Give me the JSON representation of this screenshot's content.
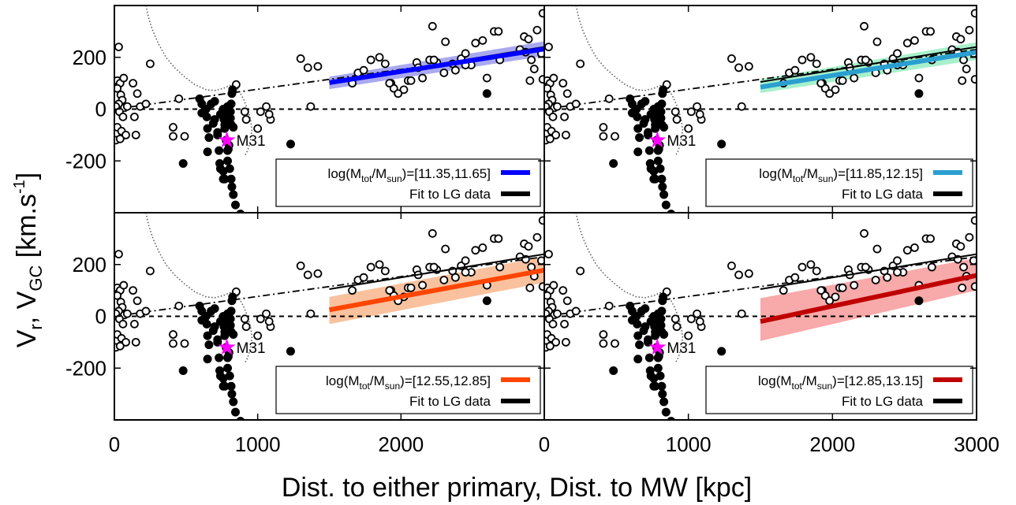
{
  "figure": {
    "ylabel_main": "V",
    "ylabel_sub1": "r",
    "ylabel_mid": ",  V",
    "ylabel_sub2": "GC",
    "ylabel_units": " [km.s",
    "ylabel_sup": "-1",
    "ylabel_close": "]",
    "xlabel": "Dist. to either primary, Dist. to MW  [kpc]",
    "mw_label": "M31"
  },
  "chart_data": [
    {
      "type": "scatter",
      "panel": "top-left",
      "legend_range": "=[11.35,11.65]",
      "band_color": "#a9a9f0",
      "line_color": "#0000ff",
      "band_low": [
        [
          1500,
          77
        ],
        [
          3000,
          205
        ]
      ],
      "band_high": [
        [
          1500,
          125
        ],
        [
          3000,
          262
        ]
      ],
      "fit_line": [
        [
          1500,
          102
        ],
        [
          3000,
          232
        ]
      ]
    },
    {
      "type": "scatter",
      "panel": "top-right",
      "legend_range": "=[11.85,12.15]",
      "band_color": "#a8f0cc",
      "line_color": "#2a9fd0",
      "band_low": [
        [
          1500,
          62
        ],
        [
          3000,
          190
        ]
      ],
      "band_high": [
        [
          1500,
          115
        ],
        [
          3000,
          258
        ]
      ],
      "fit_line": [
        [
          1500,
          85
        ],
        [
          3000,
          220
        ]
      ]
    },
    {
      "type": "scatter",
      "panel": "bottom-left",
      "legend_range": "=[12.55,12.85]",
      "band_color": "#f9c19d",
      "line_color": "#ff4500",
      "band_low": [
        [
          1500,
          -30
        ],
        [
          3000,
          130
        ]
      ],
      "band_high": [
        [
          1500,
          75
        ],
        [
          3000,
          230
        ]
      ],
      "fit_line": [
        [
          1500,
          25
        ],
        [
          3000,
          178
        ]
      ]
    },
    {
      "type": "scatter",
      "panel": "bottom-right",
      "legend_range": "=[12.85,13.15]",
      "band_color": "#f8a9a9",
      "line_color": "#c00000",
      "band_low": [
        [
          1500,
          -95
        ],
        [
          3000,
          100
        ]
      ],
      "band_high": [
        [
          1500,
          70
        ],
        [
          3000,
          225
        ]
      ],
      "fit_line": [
        [
          1500,
          -20
        ],
        [
          3000,
          158
        ]
      ]
    }
  ],
  "shared": {
    "xlim": [
      0,
      3000
    ],
    "ylim": [
      -400,
      400
    ],
    "xticks_left": [
      "0",
      "1000",
      "2000"
    ],
    "xticks_right": [
      "0",
      "1000",
      "2000",
      "3000"
    ],
    "yticks": [
      "-200",
      "0",
      "200"
    ],
    "ytick_values": [
      -200,
      0,
      200
    ],
    "legend_text_lead": "log(M",
    "legend_sub_tot": "tot",
    "legend_slash": "/M",
    "legend_sub_sun": "sun",
    "legend_close": ")",
    "legend_fit_label": "Fit to LG data",
    "fit_lg_line": [
      [
        1500,
        105
      ],
      [
        3000,
        240
      ]
    ],
    "dashdot_line": [
      [
        0,
        0
      ],
      [
        3000,
        230
      ]
    ],
    "zero_line": 0,
    "m31": {
      "x": 785,
      "y": -120
    },
    "open_points": [
      [
        20,
        110
      ],
      [
        40,
        100
      ],
      [
        20,
        80
      ],
      [
        45,
        55
      ],
      [
        55,
        35
      ],
      [
        30,
        20
      ],
      [
        10,
        10
      ],
      [
        70,
        5
      ],
      [
        35,
        -10
      ],
      [
        60,
        -30
      ],
      [
        20,
        -70
      ],
      [
        50,
        -85
      ],
      [
        80,
        -100
      ],
      [
        10,
        -120
      ],
      [
        40,
        -115
      ],
      [
        30,
        240
      ],
      [
        65,
        120
      ],
      [
        130,
        100
      ],
      [
        160,
        60
      ],
      [
        180,
        10
      ],
      [
        140,
        -30
      ],
      [
        150,
        -100
      ],
      [
        250,
        175
      ],
      [
        220,
        20
      ],
      [
        90,
        10
      ],
      [
        450,
        40
      ],
      [
        410,
        -70
      ],
      [
        410,
        -105
      ],
      [
        490,
        -105
      ],
      [
        920,
        -40
      ],
      [
        1000,
        -75
      ],
      [
        910,
        -10
      ],
      [
        1020,
        -10
      ],
      [
        1090,
        -40
      ],
      [
        1080,
        -20
      ],
      [
        1060,
        10
      ],
      [
        850,
        95
      ],
      [
        1300,
        195
      ],
      [
        1350,
        160
      ],
      [
        1420,
        165
      ],
      [
        1370,
        10
      ],
      [
        1660,
        100
      ],
      [
        1700,
        140
      ],
      [
        1740,
        150
      ],
      [
        1790,
        190
      ],
      [
        1850,
        200
      ],
      [
        1930,
        100
      ],
      [
        1950,
        80
      ],
      [
        2020,
        75
      ],
      [
        2050,
        110
      ],
      [
        2150,
        120
      ],
      [
        2200,
        190
      ],
      [
        2220,
        320
      ],
      [
        2250,
        180
      ],
      [
        2310,
        260
      ],
      [
        2360,
        175
      ],
      [
        2420,
        195
      ],
      [
        2450,
        215
      ],
      [
        2490,
        170
      ],
      [
        2520,
        255
      ],
      [
        2570,
        265
      ],
      [
        2650,
        300
      ],
      [
        2680,
        300
      ],
      [
        2690,
        190
      ],
      [
        2830,
        230
      ],
      [
        2860,
        280
      ],
      [
        2870,
        220
      ],
      [
        2890,
        270
      ],
      [
        2930,
        155
      ],
      [
        2950,
        305
      ],
      [
        2990,
        370
      ],
      [
        2980,
        215
      ],
      [
        2910,
        190
      ],
      [
        2990,
        115
      ],
      [
        2900,
        110
      ],
      [
        2600,
        120
      ],
      [
        2450,
        170
      ],
      [
        2380,
        150
      ],
      [
        2300,
        140
      ],
      [
        2110,
        180
      ],
      [
        1890,
        175
      ],
      [
        1920,
        100
      ],
      [
        2070,
        110
      ],
      [
        2230,
        190
      ],
      [
        1980,
        60
      ],
      [
        2120,
        160
      ]
    ],
    "filled_points": [
      [
        595,
        40
      ],
      [
        610,
        20
      ],
      [
        610,
        -15
      ],
      [
        645,
        -30
      ],
      [
        650,
        -75
      ],
      [
        660,
        -110
      ],
      [
        650,
        -165
      ],
      [
        480,
        -210
      ],
      [
        690,
        -55
      ],
      [
        700,
        -40
      ],
      [
        720,
        -100
      ],
      [
        730,
        -160
      ],
      [
        735,
        -210
      ],
      [
        740,
        -230
      ],
      [
        760,
        -240
      ],
      [
        760,
        -270
      ],
      [
        765,
        -40
      ],
      [
        770,
        -60
      ],
      [
        770,
        -75
      ],
      [
        780,
        -120
      ],
      [
        790,
        -160
      ],
      [
        795,
        -155
      ],
      [
        800,
        -140
      ],
      [
        790,
        -200
      ],
      [
        805,
        -230
      ],
      [
        815,
        -270
      ],
      [
        820,
        -300
      ],
      [
        830,
        -330
      ],
      [
        845,
        -370
      ],
      [
        880,
        -405
      ],
      [
        830,
        -70
      ],
      [
        815,
        -60
      ],
      [
        810,
        -35
      ],
      [
        810,
        -10
      ],
      [
        815,
        20
      ],
      [
        820,
        60
      ],
      [
        825,
        75
      ],
      [
        700,
        30
      ],
      [
        675,
        20
      ],
      [
        760,
        0
      ],
      [
        790,
        10
      ],
      [
        780,
        -20
      ],
      [
        740,
        -20
      ],
      [
        720,
        -90
      ],
      [
        1230,
        -135
      ],
      [
        2600,
        60
      ],
      [
        770,
        -270
      ],
      [
        640,
        0
      ]
    ],
    "curve_points": [
      [
        220,
        400
      ],
      [
        240,
        350
      ],
      [
        270,
        300
      ],
      [
        310,
        250
      ],
      [
        360,
        200
      ],
      [
        420,
        160
      ],
      [
        490,
        125
      ],
      [
        560,
        95
      ],
      [
        640,
        75
      ],
      [
        700,
        72
      ],
      [
        760,
        80
      ],
      [
        820,
        95
      ],
      [
        860,
        80
      ],
      [
        900,
        40
      ],
      [
        930,
        0
      ],
      [
        950,
        -40
      ],
      [
        960,
        -80
      ],
      [
        950,
        -120
      ],
      [
        930,
        -160
      ],
      [
        910,
        -180
      ]
    ]
  }
}
